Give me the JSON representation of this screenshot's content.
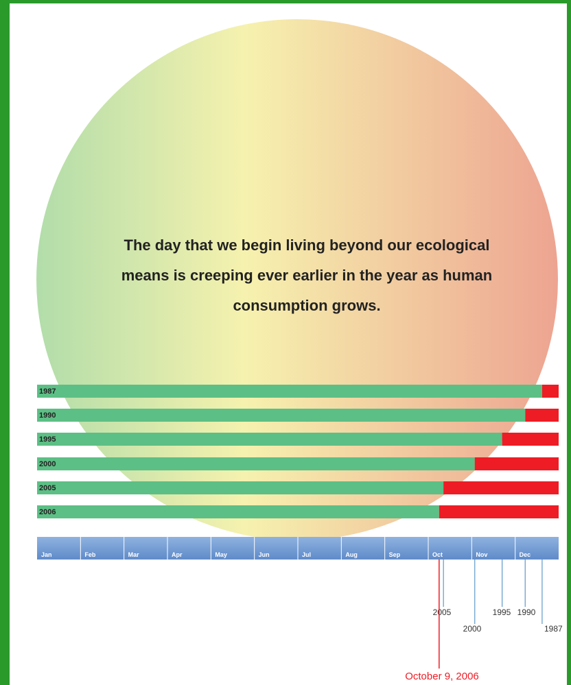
{
  "chart_data": {
    "type": "bar",
    "title": "The day that we begin living beyond our ecological means is creeping ever earlier in the year as human consumption grows.",
    "categories": [
      "1987",
      "1990",
      "1995",
      "2000",
      "2005",
      "2006"
    ],
    "values": [
      11.62,
      11.23,
      10.7,
      10.07,
      9.35,
      9.25
    ],
    "color": "#5cbf85",
    "overshoot_color": "#ee1c25",
    "xlim": [
      0,
      12
    ],
    "xticks": [
      {
        "value": 0,
        "label": "Jan"
      },
      {
        "value": 1,
        "label": "Feb"
      },
      {
        "value": 2,
        "label": "Mar"
      },
      {
        "value": 3,
        "label": "Apr"
      },
      {
        "value": 4,
        "label": "May"
      },
      {
        "value": 5,
        "label": "Jun"
      },
      {
        "value": 6,
        "label": "Jul"
      },
      {
        "value": 7,
        "label": "Aug"
      },
      {
        "value": 8,
        "label": "Sep"
      },
      {
        "value": 9,
        "label": "Oct"
      },
      {
        "value": 10,
        "label": "Nov"
      },
      {
        "value": 11,
        "label": "Dec"
      }
    ],
    "annotation": "October 9, 2006"
  }
}
